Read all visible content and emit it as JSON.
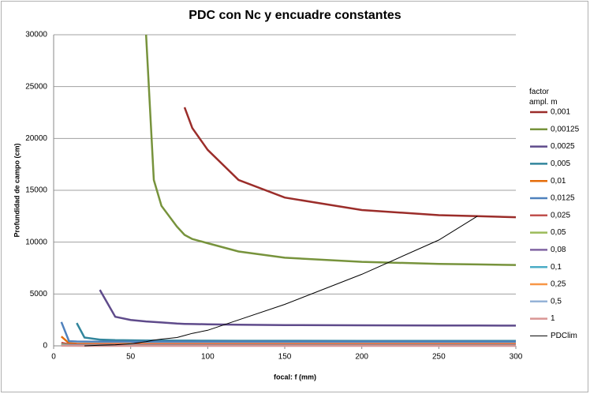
{
  "chart_data": {
    "type": "line",
    "title": "PDC con Nc y encuadre constantes",
    "x_label": "focal: f (mm)",
    "y_label": "Profundidad de campo (cm)",
    "legend_title": "factor ampl. m",
    "legend_position": "right",
    "grid": true,
    "x": [
      5,
      10,
      15,
      20,
      30,
      40,
      50,
      60,
      65,
      70,
      80,
      85,
      90,
      100,
      120,
      150,
      200,
      250,
      275,
      300
    ],
    "xlim": [
      0,
      300
    ],
    "xticks": [
      0,
      50,
      100,
      150,
      200,
      250,
      300
    ],
    "ylim": [
      0,
      30000
    ],
    "yticks": [
      0,
      5000,
      10000,
      15000,
      20000,
      25000,
      30000
    ],
    "series": [
      {
        "name": "0,001",
        "color": "#9b2d2a",
        "values": [
          null,
          null,
          null,
          null,
          null,
          null,
          null,
          null,
          null,
          null,
          null,
          23000,
          21000,
          18900,
          16000,
          14300,
          13100,
          12600,
          12500,
          12400
        ]
      },
      {
        "name": "0,00125",
        "color": "#77933c",
        "values": [
          null,
          null,
          null,
          null,
          null,
          null,
          null,
          30000,
          16000,
          13500,
          11500,
          10700,
          10300,
          9900,
          9100,
          8500,
          8100,
          7900,
          7850,
          7800
        ]
      },
      {
        "name": "0,0025",
        "color": "#5f4b8b",
        "values": [
          null,
          null,
          null,
          null,
          5400,
          2800,
          2500,
          2350,
          2300,
          2250,
          2150,
          2120,
          2100,
          2080,
          2040,
          2000,
          1980,
          1960,
          1955,
          1950
        ]
      },
      {
        "name": "0,005",
        "color": "#31859c",
        "values": [
          null,
          null,
          2200,
          800,
          600,
          550,
          530,
          520,
          515,
          510,
          505,
          500,
          500,
          495,
          490,
          485,
          482,
          480,
          480,
          480
        ]
      },
      {
        "name": "0,01",
        "color": "#e46c0a",
        "values": [
          900,
          250,
          200,
          190,
          185,
          180,
          180,
          180,
          180,
          180,
          180,
          180,
          180,
          180,
          180,
          180,
          180,
          180,
          180,
          180
        ]
      },
      {
        "name": "0,0125",
        "color": "#4f81bd",
        "values": [
          2300,
          450,
          420,
          410,
          400,
          400,
          400,
          400,
          400,
          400,
          400,
          400,
          400,
          400,
          400,
          400,
          400,
          400,
          400,
          400
        ]
      },
      {
        "name": "0,025",
        "color": "#c0504d",
        "values": [
          300,
          150,
          130,
          120,
          120,
          120,
          120,
          120,
          120,
          120,
          120,
          120,
          120,
          120,
          120,
          120,
          120,
          120,
          120,
          120
        ]
      },
      {
        "name": "0,05",
        "color": "#9bbb59",
        "values": [
          150,
          80,
          70,
          65,
          60,
          60,
          60,
          60,
          60,
          60,
          60,
          60,
          60,
          60,
          60,
          60,
          60,
          60,
          60,
          60
        ]
      },
      {
        "name": "0,08",
        "color": "#8064a2",
        "values": [
          100,
          50,
          45,
          40,
          40,
          40,
          40,
          40,
          40,
          40,
          40,
          40,
          40,
          40,
          40,
          40,
          40,
          40,
          40,
          40
        ]
      },
      {
        "name": "0,1",
        "color": "#4bacc6",
        "values": [
          80,
          40,
          35,
          32,
          30,
          30,
          30,
          30,
          30,
          30,
          30,
          30,
          30,
          30,
          30,
          30,
          30,
          30,
          30,
          30
        ]
      },
      {
        "name": "0,25",
        "color": "#f79646",
        "values": [
          40,
          20,
          15,
          12,
          12,
          12,
          12,
          12,
          12,
          12,
          12,
          12,
          12,
          12,
          12,
          12,
          12,
          12,
          12,
          12
        ]
      },
      {
        "name": "0,5",
        "color": "#95b3d7",
        "values": [
          20,
          10,
          8,
          6,
          6,
          6,
          6,
          6,
          6,
          6,
          6,
          6,
          6,
          6,
          6,
          6,
          6,
          6,
          6,
          6
        ]
      },
      {
        "name": "1",
        "color": "#d99694",
        "values": [
          10,
          5,
          4,
          3,
          3,
          3,
          3,
          3,
          3,
          3,
          3,
          3,
          3,
          3,
          3,
          3,
          3,
          3,
          3,
          3
        ]
      },
      {
        "name": "PDClim",
        "color": "#000000",
        "width": 1,
        "values": [
          null,
          null,
          null,
          0,
          50,
          100,
          200,
          400,
          550,
          650,
          800,
          1000,
          1200,
          1500,
          2500,
          4000,
          6900,
          10200,
          12500,
          null
        ]
      }
    ]
  }
}
